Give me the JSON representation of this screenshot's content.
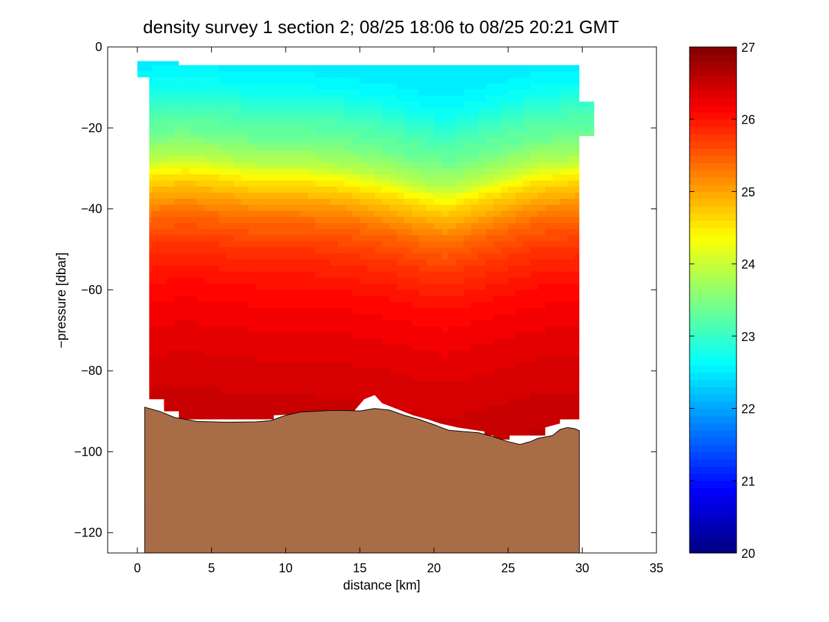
{
  "chart_data": {
    "type": "contour",
    "title": "density survey 1 section 2; 08/25 18:06 to 08/25 20:21 GMT",
    "xlabel": "distance [km]",
    "ylabel": "−pressure [dbar]",
    "xlim": [
      -2,
      35
    ],
    "ylim": [
      -125,
      0
    ],
    "xticks": [
      0,
      5,
      10,
      15,
      20,
      25,
      30,
      35
    ],
    "xtick_labels": [
      "0",
      "5",
      "10",
      "15",
      "20",
      "25",
      "30",
      "35"
    ],
    "yticks": [
      0,
      -20,
      -40,
      -60,
      -80,
      -100,
      -120
    ],
    "ytick_labels": [
      "0",
      "−20",
      "−40",
      "−60",
      "−80",
      "−100",
      "−120"
    ],
    "colorbar": {
      "colormap": "jet",
      "range": [
        20,
        27
      ],
      "ticks": [
        20,
        21,
        22,
        23,
        24,
        25,
        26,
        27
      ],
      "tick_labels": [
        "20",
        "21",
        "22",
        "23",
        "24",
        "25",
        "26",
        "27"
      ]
    },
    "sigma_profile": [
      {
        "y": -4,
        "value": 22.5
      },
      {
        "y": -10,
        "value": 22.7
      },
      {
        "y": -16,
        "value": 23.1
      },
      {
        "y": -22,
        "value": 23.4
      },
      {
        "y": -28,
        "value": 23.9
      },
      {
        "y": -32,
        "value": 24.5
      },
      {
        "y": -36,
        "value": 24.9
      },
      {
        "y": -42,
        "value": 25.4
      },
      {
        "y": -50,
        "value": 25.8
      },
      {
        "y": -60,
        "value": 26.1
      },
      {
        "y": -72,
        "value": 26.3
      },
      {
        "y": -85,
        "value": 26.45
      },
      {
        "y": -98,
        "value": 26.6
      }
    ],
    "isopycnal_depth_offsets": [
      {
        "x": 0.5,
        "dz": 0
      },
      {
        "x": 3,
        "dz": -1
      },
      {
        "x": 6,
        "dz": 0
      },
      {
        "x": 8,
        "dz": 1
      },
      {
        "x": 11,
        "dz": 1
      },
      {
        "x": 14,
        "dz": 2
      },
      {
        "x": 17,
        "dz": 4
      },
      {
        "x": 19,
        "dz": 6
      },
      {
        "x": 21,
        "dz": 7
      },
      {
        "x": 24,
        "dz": 4
      },
      {
        "x": 27,
        "dz": 1
      },
      {
        "x": 30,
        "dz": 0
      }
    ],
    "data_top": [
      {
        "x": 0.0,
        "top": -3.5
      },
      {
        "x": 2.8,
        "top": -3.5
      },
      {
        "x": 2.8,
        "top": -4.5
      },
      {
        "x": 29.8,
        "top": -4.5
      },
      {
        "x": 29.8,
        "top": -13.5
      },
      {
        "x": 30.8,
        "top": -13.5
      }
    ],
    "data_edges": {
      "left_x": 0.0,
      "right_x": 30.8
    },
    "data_bottom": [
      {
        "x": 0.0,
        "z": -7.5
      },
      {
        "x": 0.8,
        "z": -7.5
      },
      {
        "x": 0.8,
        "z": -87
      },
      {
        "x": 1.8,
        "z": -87
      },
      {
        "x": 1.8,
        "z": -90
      },
      {
        "x": 2.8,
        "z": -90
      },
      {
        "x": 2.8,
        "z": -92
      },
      {
        "x": 9.2,
        "z": -92
      },
      {
        "x": 9.2,
        "z": -91
      },
      {
        "x": 14.6,
        "z": -90
      },
      {
        "x": 15.3,
        "z": -87
      },
      {
        "x": 16.0,
        "z": -86
      },
      {
        "x": 16.5,
        "z": -88
      },
      {
        "x": 18.6,
        "z": -91
      },
      {
        "x": 19.6,
        "z": -92
      },
      {
        "x": 20.4,
        "z": -93
      },
      {
        "x": 21.6,
        "z": -94
      },
      {
        "x": 23.4,
        "z": -95
      },
      {
        "x": 23.4,
        "z": -96
      },
      {
        "x": 24.0,
        "z": -96
      },
      {
        "x": 24.0,
        "z": -97
      },
      {
        "x": 25.1,
        "z": -97
      },
      {
        "x": 25.1,
        "z": -96
      },
      {
        "x": 27.5,
        "z": -96
      },
      {
        "x": 27.5,
        "z": -94
      },
      {
        "x": 28.5,
        "z": -93
      },
      {
        "x": 28.5,
        "z": -92
      },
      {
        "x": 29.8,
        "z": -92
      },
      {
        "x": 29.8,
        "z": -22
      },
      {
        "x": 30.8,
        "z": -22
      }
    ],
    "bathymetry": [
      {
        "x": 0.5,
        "z": -89
      },
      {
        "x": 1.5,
        "z": -90
      },
      {
        "x": 2.5,
        "z": -91.5
      },
      {
        "x": 4.0,
        "z": -92.5
      },
      {
        "x": 6.0,
        "z": -92.7
      },
      {
        "x": 8.0,
        "z": -92.6
      },
      {
        "x": 9.0,
        "z": -92.3
      },
      {
        "x": 10.0,
        "z": -91
      },
      {
        "x": 11.0,
        "z": -90.2
      },
      {
        "x": 12.0,
        "z": -90
      },
      {
        "x": 13.0,
        "z": -89.8
      },
      {
        "x": 14.0,
        "z": -89.8
      },
      {
        "x": 15.0,
        "z": -89.9
      },
      {
        "x": 16.0,
        "z": -89.3
      },
      {
        "x": 17.0,
        "z": -89.7
      },
      {
        "x": 18.0,
        "z": -91
      },
      {
        "x": 19.0,
        "z": -92
      },
      {
        "x": 20.0,
        "z": -93.3
      },
      {
        "x": 21.0,
        "z": -94.7
      },
      {
        "x": 22.0,
        "z": -95
      },
      {
        "x": 23.0,
        "z": -95.3
      },
      {
        "x": 24.0,
        "z": -96.3
      },
      {
        "x": 25.0,
        "z": -97.5
      },
      {
        "x": 25.8,
        "z": -98.2
      },
      {
        "x": 26.5,
        "z": -97.5
      },
      {
        "x": 27.0,
        "z": -96.7
      },
      {
        "x": 28.0,
        "z": -96
      },
      {
        "x": 28.5,
        "z": -94.5
      },
      {
        "x": 29.0,
        "z": -94
      },
      {
        "x": 29.5,
        "z": -94.3
      },
      {
        "x": 29.8,
        "z": -94.8
      },
      {
        "x": 29.8,
        "z": -125
      }
    ],
    "colors": {
      "seafloor": "#a86d47",
      "seafloor_edge": "#000000",
      "axes": "#000000",
      "background": "#ffffff"
    }
  }
}
